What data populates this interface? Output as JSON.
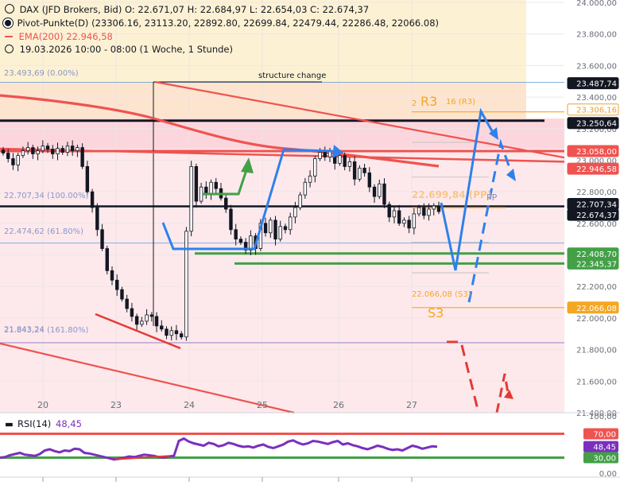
{
  "legend": {
    "line1_prefix": "DAX (JFD Brokers, Bid)",
    "line1_ohlc": "O: 22.671,07  H: 22.684,97  L: 22.654,03  C: 22.674,37",
    "pivot_label": "Pivot-Punkte(D)",
    "pivot_values": "(23306.16, 23113.20, 22892.80, 22699.84, 22479.44, 22286.48, 22066.08)",
    "ema_label": "EMA(200)",
    "ema_value": "22.946,58",
    "time_label": "19.03.2026 10:00 - 08:00  (1 Woche, 1 Stunde)"
  },
  "annotations": {
    "structure_change": "structure change",
    "r3_prefix": "2",
    "r3_big": "R3",
    "r3_suffix": "16 (R3)",
    "r3_price": "23.306,16",
    "pp_text": "22.699,84 (PP)",
    "pp_small": "PP",
    "s3_text": "22.066,08 (S3)",
    "s3_big": "S3",
    "fib0": "23.493,69 (0.00%)",
    "fib100": "22.707,34 (100.00%)",
    "fib618": "22.474,62 (61.80%)",
    "fib1618": "21.843,24 (161.80%)",
    "fib1618_overlap": "21.843,24"
  },
  "price_axis": {
    "ticks": [
      "24.000,00",
      "23.800,00",
      "23.600,00",
      "23.400,00",
      "23.200,00",
      "23.000,00",
      "22.800,00",
      "22.600,00",
      "22.400,00",
      "22.200,00",
      "22.000,00",
      "21.800,00",
      "21.600,00",
      "21.400,00"
    ],
    "badges": [
      {
        "value": "23.487,74",
        "color": "#131722"
      },
      {
        "value": "23.306,16",
        "color": "#ffffff",
        "text": "#e8a23a",
        "border": "#e8a23a"
      },
      {
        "value": "23.250,64",
        "color": "#131722"
      },
      {
        "value": "23.058,00",
        "color": "#ef5350"
      },
      {
        "value": "22.946,58",
        "color": "#ef5350"
      },
      {
        "value": "22.707,34",
        "color": "#131722"
      },
      {
        "value": "22.674,37",
        "color": "#131722"
      },
      {
        "value": "22.408,70",
        "color": "#43a047"
      },
      {
        "value": "22.345,37",
        "color": "#43a047"
      },
      {
        "value": "22.066,08",
        "color": "#f5a623"
      }
    ]
  },
  "time_axis": {
    "labels": [
      "20",
      "23",
      "24",
      "25",
      "26",
      "27"
    ]
  },
  "rsi": {
    "label": "RSI(14)",
    "value": "48,45",
    "ticks": [
      "100,00",
      "0,00"
    ],
    "upper": "70,00",
    "lower": "30,00",
    "upper_color": "#ef5350",
    "lower_color": "#43a047",
    "line_color": "#7b2fbe",
    "values": [
      30,
      31,
      34,
      36,
      38,
      35,
      34,
      33,
      36,
      42,
      44,
      41,
      39,
      42,
      41,
      45,
      44,
      38,
      37,
      35,
      33,
      31,
      29,
      27,
      28,
      30,
      32,
      31,
      33,
      35,
      34,
      33,
      31,
      30,
      32,
      33,
      58,
      62,
      57,
      54,
      52,
      50,
      55,
      53,
      49,
      51,
      55,
      53,
      50,
      48,
      49,
      47,
      50,
      52,
      48,
      46,
      49,
      52,
      57,
      59,
      55,
      52,
      54,
      58,
      57,
      55,
      53,
      56,
      58,
      52,
      54,
      51,
      49,
      46,
      44,
      47,
      50,
      48,
      45,
      43,
      44,
      42,
      46,
      50,
      48,
      45,
      47,
      49,
      48.45
    ]
  },
  "chart_data": {
    "type": "candlestick",
    "instrument": "DAX (JFD Brokers, Bid)",
    "timeframe": "1 Stunde",
    "ylim": [
      21400,
      24000
    ],
    "x_labels": [
      "20",
      "23",
      "24",
      "25",
      "26",
      "27"
    ],
    "last_close": 22674.37,
    "pivots": {
      "R3": 23306.16,
      "R2": 23113.2,
      "R1": 22892.8,
      "PP": 22699.84,
      "S1": 22479.44,
      "S2": 22286.48,
      "S3": 22066.08
    },
    "ema200_last": 22946.58,
    "levels": {
      "resistance_black": 23250.64,
      "red_horizontal": 23058.0,
      "black_pp_line": 22707.34,
      "green_support_1": 22408.7,
      "green_support_2": 22345.37
    },
    "fibonacci": [
      {
        "level": "0.00%",
        "price": 23493.69
      },
      {
        "level": "100.00%",
        "price": 22707.34
      },
      {
        "level": "61.80%",
        "price": 22474.62
      },
      {
        "level": "161.80%",
        "price": 21843.24
      }
    ],
    "closes": [
      23045,
      23010,
      22970,
      23030,
      23060,
      23080,
      23040,
      23060,
      23090,
      23070,
      23040,
      23075,
      23050,
      23090,
      23060,
      23080,
      22960,
      22800,
      22700,
      22560,
      22440,
      22300,
      22240,
      22180,
      22120,
      22060,
      22010,
      21960,
      21980,
      22020,
      22010,
      21950,
      21930,
      21890,
      21920,
      21900,
      21880,
      22550,
      22960,
      22740,
      22830,
      22780,
      22860,
      22820,
      22760,
      22690,
      22560,
      22500,
      22480,
      22430,
      22520,
      22440,
      22600,
      22540,
      22620,
      22500,
      22580,
      22560,
      22640,
      22700,
      22780,
      22860,
      22900,
      23010,
      23050,
      23020,
      23060,
      22980,
      23030,
      22960,
      22990,
      22880,
      22950,
      22920,
      22830,
      22770,
      22850,
      22720,
      22640,
      22680,
      22600,
      22620,
      22570,
      22660,
      22700,
      22650,
      22690,
      22710,
      22674.37
    ]
  }
}
